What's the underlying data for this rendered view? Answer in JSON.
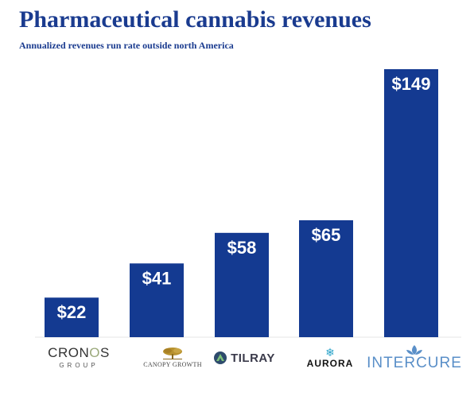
{
  "header": {
    "title": "Pharmaceutical cannabis revenues",
    "subtitle": "Annualized revenues run rate outside north America"
  },
  "colors": {
    "bar": "#143a91",
    "title": "#1a3b8f"
  },
  "logos": {
    "cronos": {
      "main_prefix": "CRON",
      "main_accent": "O",
      "main_suffix": "S",
      "sub": "GROUP"
    },
    "canopy": {
      "name": "CANOPY GROWTH"
    },
    "tilray": {
      "name": "TILRAY",
      "icon": "tilray-icon"
    },
    "aurora": {
      "name": "AURORA",
      "icon": "aurora-snowflake-icon"
    },
    "intercure": {
      "name": "INTERCURE",
      "icon": "intercure-leaf-icon"
    }
  },
  "chart_data": {
    "type": "bar",
    "categories": [
      "Cronos Group",
      "Canopy Growth",
      "Tilray",
      "Aurora",
      "InterCure"
    ],
    "values": [
      22,
      41,
      58,
      65,
      149
    ],
    "data_labels": [
      "$22",
      "$41",
      "$58",
      "$65",
      "$149"
    ],
    "title": "Pharmaceutical cannabis revenues",
    "subtitle": "Annualized revenues run rate outside north America",
    "xlabel": "",
    "ylabel": "",
    "ylim": [
      0,
      150
    ],
    "grid": false,
    "legend": "none"
  }
}
